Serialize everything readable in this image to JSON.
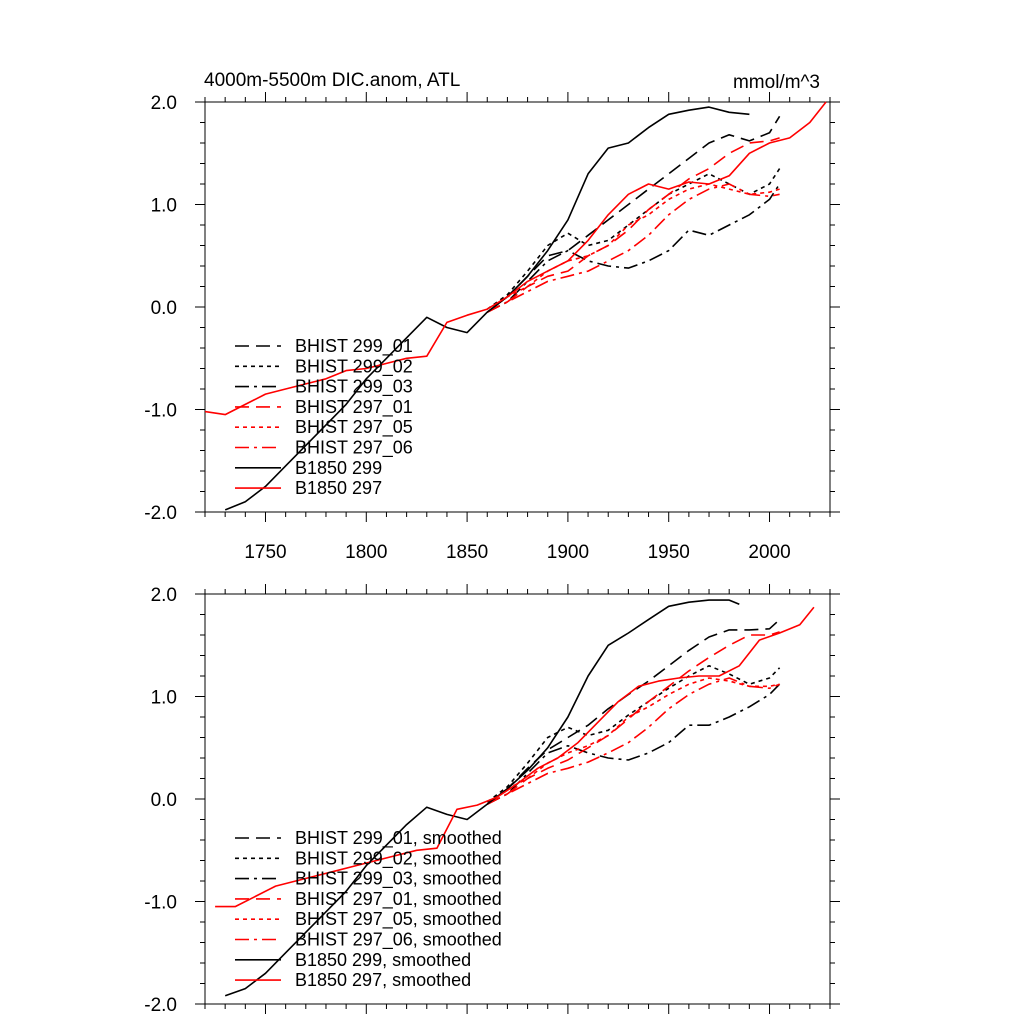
{
  "figure": {
    "title": "4000m-5500m DIC.anom, ATL",
    "units": "mmol/m^3"
  },
  "chart_data": [
    {
      "type": "line",
      "panel": "top",
      "title": "4000m-5500m DIC.anom, ATL",
      "units_label": "mmol/m^3",
      "xlabel": "",
      "ylabel": "",
      "xlim": [
        1720,
        2030
      ],
      "ylim": [
        -2.0,
        2.0
      ],
      "x_ticks": [
        1750,
        1800,
        1850,
        1900,
        1950,
        2000
      ],
      "x_tick_labels": [
        "1750",
        "1800",
        "1850",
        "1900",
        "1950",
        "2000"
      ],
      "y_ticks": [
        -2.0,
        -1.0,
        0.0,
        1.0,
        2.0
      ],
      "y_tick_labels": [
        "-2.0",
        "-1.0",
        "0.0",
        "1.0",
        "2.0"
      ],
      "grid": false,
      "legend_position": "lower-left",
      "series": [
        {
          "name": "BHIST 299_01",
          "color": "#000000",
          "dash": "long-dash",
          "x": [
            1860,
            1870,
            1880,
            1890,
            1900,
            1910,
            1920,
            1930,
            1940,
            1950,
            1960,
            1970,
            1980,
            1990,
            2000,
            2005
          ],
          "y": [
            -0.05,
            0.1,
            0.3,
            0.5,
            0.55,
            0.7,
            0.85,
            1.0,
            1.15,
            1.3,
            1.45,
            1.6,
            1.68,
            1.62,
            1.7,
            1.86
          ]
        },
        {
          "name": "BHIST 299_02",
          "color": "#000000",
          "dash": "short-dash",
          "x": [
            1860,
            1870,
            1880,
            1890,
            1900,
            1910,
            1920,
            1930,
            1940,
            1950,
            1960,
            1970,
            1980,
            1990,
            2000,
            2005
          ],
          "y": [
            -0.02,
            0.12,
            0.35,
            0.6,
            0.72,
            0.6,
            0.65,
            0.8,
            0.95,
            1.1,
            1.2,
            1.3,
            1.2,
            1.1,
            1.2,
            1.35
          ]
        },
        {
          "name": "BHIST 299_03",
          "color": "#000000",
          "dash": "dash-dot",
          "x": [
            1860,
            1870,
            1880,
            1890,
            1900,
            1910,
            1920,
            1930,
            1940,
            1950,
            1960,
            1970,
            1980,
            1990,
            2000,
            2005
          ],
          "y": [
            -0.05,
            0.05,
            0.25,
            0.45,
            0.55,
            0.45,
            0.4,
            0.38,
            0.45,
            0.55,
            0.75,
            0.7,
            0.8,
            0.9,
            1.05,
            1.2
          ]
        },
        {
          "name": "BHIST 297_01",
          "color": "#ff0000",
          "dash": "long-dash",
          "x": [
            1860,
            1870,
            1880,
            1890,
            1900,
            1910,
            1920,
            1930,
            1940,
            1950,
            1960,
            1970,
            1980,
            1990,
            2000,
            2005
          ],
          "y": [
            -0.05,
            0.05,
            0.2,
            0.3,
            0.35,
            0.5,
            0.6,
            0.75,
            0.95,
            1.1,
            1.25,
            1.35,
            1.5,
            1.6,
            1.62,
            1.65
          ]
        },
        {
          "name": "BHIST 297_05",
          "color": "#ff0000",
          "dash": "short-dash",
          "x": [
            1860,
            1870,
            1880,
            1890,
            1900,
            1910,
            1920,
            1930,
            1940,
            1950,
            1960,
            1970,
            1980,
            1990,
            2000,
            2005
          ],
          "y": [
            -0.05,
            0.1,
            0.2,
            0.35,
            0.45,
            0.5,
            0.6,
            0.8,
            0.9,
            1.05,
            1.15,
            1.2,
            1.15,
            1.1,
            1.12,
            1.15
          ]
        },
        {
          "name": "BHIST 297_06",
          "color": "#ff0000",
          "dash": "dash-dot",
          "x": [
            1860,
            1870,
            1880,
            1890,
            1900,
            1910,
            1920,
            1930,
            1940,
            1950,
            1960,
            1970,
            1980,
            1990,
            2000,
            2005
          ],
          "y": [
            -0.05,
            0.05,
            0.15,
            0.25,
            0.3,
            0.35,
            0.45,
            0.55,
            0.7,
            0.9,
            1.05,
            1.15,
            1.2,
            1.1,
            1.08,
            1.1
          ]
        },
        {
          "name": "B1850 299",
          "color": "#000000",
          "dash": "solid",
          "x": [
            1730,
            1740,
            1750,
            1760,
            1770,
            1780,
            1790,
            1800,
            1810,
            1820,
            1830,
            1840,
            1850,
            1860,
            1870,
            1880,
            1890,
            1900,
            1910,
            1920,
            1930,
            1940,
            1950,
            1960,
            1970,
            1980,
            1990
          ],
          "y": [
            -1.98,
            -1.9,
            -1.75,
            -1.55,
            -1.35,
            -1.15,
            -0.95,
            -0.7,
            -0.5,
            -0.3,
            -0.1,
            -0.2,
            -0.25,
            -0.05,
            0.1,
            0.3,
            0.55,
            0.85,
            1.3,
            1.55,
            1.6,
            1.75,
            1.88,
            1.92,
            1.95,
            1.9,
            1.88
          ]
        },
        {
          "name": "B1850 297",
          "color": "#ff0000",
          "dash": "solid",
          "x": [
            1720,
            1730,
            1740,
            1750,
            1760,
            1770,
            1780,
            1790,
            1800,
            1810,
            1820,
            1830,
            1840,
            1850,
            1860,
            1870,
            1880,
            1890,
            1900,
            1910,
            1920,
            1930,
            1940,
            1950,
            1960,
            1970,
            1980,
            1990,
            2000,
            2010,
            2020,
            2028
          ],
          "y": [
            -1.02,
            -1.05,
            -0.95,
            -0.85,
            -0.8,
            -0.75,
            -0.7,
            -0.62,
            -0.6,
            -0.55,
            -0.5,
            -0.48,
            -0.15,
            -0.08,
            -0.02,
            0.1,
            0.25,
            0.35,
            0.45,
            0.65,
            0.9,
            1.1,
            1.2,
            1.15,
            1.22,
            1.2,
            1.28,
            1.5,
            1.6,
            1.65,
            1.8,
            2.0
          ]
        }
      ]
    },
    {
      "type": "line",
      "panel": "bottom",
      "title": "",
      "xlabel": "",
      "ylabel": "",
      "xlim": [
        1720,
        2030
      ],
      "ylim": [
        -2.0,
        2.0
      ],
      "x_ticks": [
        1750,
        1800,
        1850,
        1900,
        1950,
        2000
      ],
      "x_tick_labels": [],
      "y_ticks": [
        -2.0,
        -1.0,
        0.0,
        1.0,
        2.0
      ],
      "y_tick_labels": [
        "-2.0",
        "-1.0",
        "0.0",
        "1.0",
        "2.0"
      ],
      "grid": false,
      "legend_position": "lower-left",
      "series": [
        {
          "name": "BHIST 299_01, smoothed",
          "color": "#000000",
          "dash": "long-dash",
          "x": [
            1860,
            1870,
            1880,
            1890,
            1900,
            1910,
            1920,
            1930,
            1940,
            1950,
            1960,
            1970,
            1980,
            1990,
            2000,
            2005
          ],
          "y": [
            -0.05,
            0.1,
            0.3,
            0.48,
            0.6,
            0.72,
            0.88,
            1.02,
            1.15,
            1.3,
            1.45,
            1.58,
            1.65,
            1.65,
            1.66,
            1.75
          ]
        },
        {
          "name": "BHIST 299_02, smoothed",
          "color": "#000000",
          "dash": "short-dash",
          "x": [
            1860,
            1870,
            1880,
            1890,
            1900,
            1910,
            1920,
            1930,
            1940,
            1950,
            1960,
            1970,
            1980,
            1990,
            2000,
            2005
          ],
          "y": [
            -0.03,
            0.12,
            0.35,
            0.6,
            0.7,
            0.62,
            0.67,
            0.82,
            0.95,
            1.08,
            1.2,
            1.3,
            1.22,
            1.12,
            1.18,
            1.28
          ]
        },
        {
          "name": "BHIST 299_03, smoothed",
          "color": "#000000",
          "dash": "dash-dot",
          "x": [
            1860,
            1870,
            1880,
            1890,
            1900,
            1910,
            1920,
            1930,
            1940,
            1950,
            1960,
            1970,
            1980,
            1990,
            2000,
            2005
          ],
          "y": [
            -0.05,
            0.05,
            0.25,
            0.45,
            0.52,
            0.45,
            0.4,
            0.38,
            0.45,
            0.55,
            0.72,
            0.72,
            0.8,
            0.9,
            1.02,
            1.12
          ]
        },
        {
          "name": "BHIST 297_01, smoothed",
          "color": "#ff0000",
          "dash": "long-dash",
          "x": [
            1860,
            1870,
            1880,
            1890,
            1900,
            1910,
            1920,
            1930,
            1940,
            1950,
            1960,
            1970,
            1980,
            1990,
            2000,
            2005
          ],
          "y": [
            -0.05,
            0.05,
            0.2,
            0.3,
            0.38,
            0.5,
            0.62,
            0.78,
            0.95,
            1.1,
            1.25,
            1.38,
            1.5,
            1.6,
            1.6,
            1.63
          ]
        },
        {
          "name": "BHIST 297_05, smoothed",
          "color": "#ff0000",
          "dash": "short-dash",
          "x": [
            1860,
            1870,
            1880,
            1890,
            1900,
            1910,
            1920,
            1930,
            1940,
            1950,
            1960,
            1970,
            1980,
            1990,
            2000,
            2005
          ],
          "y": [
            -0.05,
            0.1,
            0.2,
            0.35,
            0.45,
            0.52,
            0.62,
            0.8,
            0.9,
            1.02,
            1.12,
            1.18,
            1.15,
            1.1,
            1.1,
            1.12
          ]
        },
        {
          "name": "BHIST 297_06, smoothed",
          "color": "#ff0000",
          "dash": "dash-dot",
          "x": [
            1860,
            1870,
            1880,
            1890,
            1900,
            1910,
            1920,
            1930,
            1940,
            1950,
            1960,
            1970,
            1980,
            1990,
            2000,
            2005
          ],
          "y": [
            -0.05,
            0.05,
            0.15,
            0.25,
            0.3,
            0.36,
            0.45,
            0.55,
            0.7,
            0.88,
            1.02,
            1.12,
            1.18,
            1.1,
            1.08,
            1.12
          ]
        },
        {
          "name": "B1850 299, smoothed",
          "color": "#000000",
          "dash": "solid",
          "x": [
            1730,
            1740,
            1750,
            1760,
            1770,
            1780,
            1790,
            1800,
            1810,
            1820,
            1830,
            1840,
            1850,
            1860,
            1870,
            1880,
            1890,
            1900,
            1910,
            1920,
            1930,
            1940,
            1950,
            1960,
            1970,
            1980,
            1985
          ],
          "y": [
            -1.92,
            -1.85,
            -1.7,
            -1.5,
            -1.3,
            -1.1,
            -0.9,
            -0.65,
            -0.45,
            -0.25,
            -0.08,
            -0.15,
            -0.2,
            -0.05,
            0.1,
            0.28,
            0.5,
            0.8,
            1.2,
            1.5,
            1.62,
            1.75,
            1.88,
            1.92,
            1.94,
            1.94,
            1.9
          ]
        },
        {
          "name": "B1850 297, smoothed",
          "color": "#ff0000",
          "dash": "solid",
          "x": [
            1725,
            1735,
            1745,
            1755,
            1765,
            1775,
            1785,
            1795,
            1805,
            1815,
            1825,
            1835,
            1845,
            1855,
            1865,
            1875,
            1885,
            1895,
            1905,
            1915,
            1925,
            1935,
            1945,
            1955,
            1965,
            1975,
            1985,
            1995,
            2005,
            2015,
            2022
          ],
          "y": [
            -1.05,
            -1.05,
            -0.95,
            -0.85,
            -0.8,
            -0.75,
            -0.7,
            -0.65,
            -0.6,
            -0.55,
            -0.5,
            -0.48,
            -0.1,
            -0.06,
            0.02,
            0.15,
            0.3,
            0.4,
            0.55,
            0.75,
            0.95,
            1.1,
            1.15,
            1.18,
            1.2,
            1.2,
            1.3,
            1.55,
            1.62,
            1.7,
            1.87
          ]
        }
      ]
    }
  ]
}
